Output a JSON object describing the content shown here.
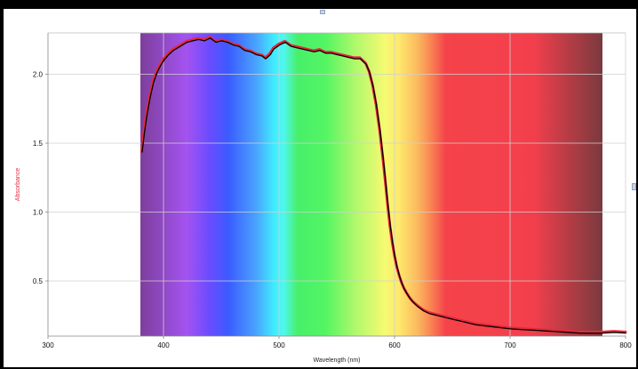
{
  "chart_data": {
    "type": "line",
    "xlabel": "Wavelength (nm)",
    "ylabel": "Absorbance",
    "xlim": [
      300,
      800
    ],
    "ylim": [
      0.1,
      2.3
    ],
    "x_ticks": [
      300,
      400,
      500,
      600,
      700,
      800
    ],
    "y_ticks": [
      0.5,
      1.0,
      1.5,
      2.0
    ],
    "x_tick_labels": [
      "300",
      "400",
      "500",
      "600",
      "700",
      "800"
    ],
    "y_tick_labels": [
      "0.5",
      "1.0",
      "1.5",
      "2.0"
    ],
    "grid": true,
    "spectrum_band": {
      "x_start": 380,
      "x_end": 780
    },
    "colors": {
      "curve_primary": "#e8283c",
      "curve_secondary": "#000000",
      "ylabel": "#e8283c",
      "xlabel": "#222222"
    },
    "series": [
      {
        "x": [
          381,
          383,
          385,
          388,
          391,
          394,
          397,
          400,
          404,
          408,
          412,
          416,
          420,
          425,
          430,
          435,
          440,
          445,
          450,
          455,
          460,
          465,
          470,
          475,
          480,
          485,
          488,
          492,
          495,
          500,
          505,
          510,
          515,
          520,
          525,
          530,
          535,
          540,
          545,
          550,
          555,
          560,
          565,
          570,
          575,
          578,
          581,
          584,
          587,
          590,
          592,
          594,
          596,
          598,
          600,
          602,
          604,
          606,
          608,
          610,
          613,
          616,
          620,
          625,
          630,
          635,
          640,
          645,
          650,
          655,
          660,
          665,
          670,
          675,
          680,
          690,
          700,
          710,
          720,
          730,
          740,
          750,
          760,
          770,
          780,
          790,
          800
        ],
        "values": [
          1.44,
          1.58,
          1.7,
          1.84,
          1.95,
          2.02,
          2.07,
          2.11,
          2.15,
          2.18,
          2.2,
          2.22,
          2.24,
          2.25,
          2.26,
          2.25,
          2.27,
          2.24,
          2.25,
          2.24,
          2.22,
          2.21,
          2.18,
          2.17,
          2.15,
          2.14,
          2.12,
          2.15,
          2.19,
          2.22,
          2.24,
          2.21,
          2.2,
          2.19,
          2.18,
          2.17,
          2.18,
          2.16,
          2.16,
          2.15,
          2.14,
          2.13,
          2.12,
          2.12,
          2.08,
          2.02,
          1.92,
          1.78,
          1.6,
          1.38,
          1.22,
          1.05,
          0.9,
          0.78,
          0.68,
          0.6,
          0.54,
          0.49,
          0.45,
          0.42,
          0.38,
          0.35,
          0.32,
          0.29,
          0.27,
          0.26,
          0.25,
          0.24,
          0.23,
          0.22,
          0.21,
          0.2,
          0.19,
          0.185,
          0.18,
          0.17,
          0.16,
          0.155,
          0.15,
          0.145,
          0.14,
          0.135,
          0.13,
          0.13,
          0.13,
          0.135,
          0.13
        ]
      }
    ]
  }
}
